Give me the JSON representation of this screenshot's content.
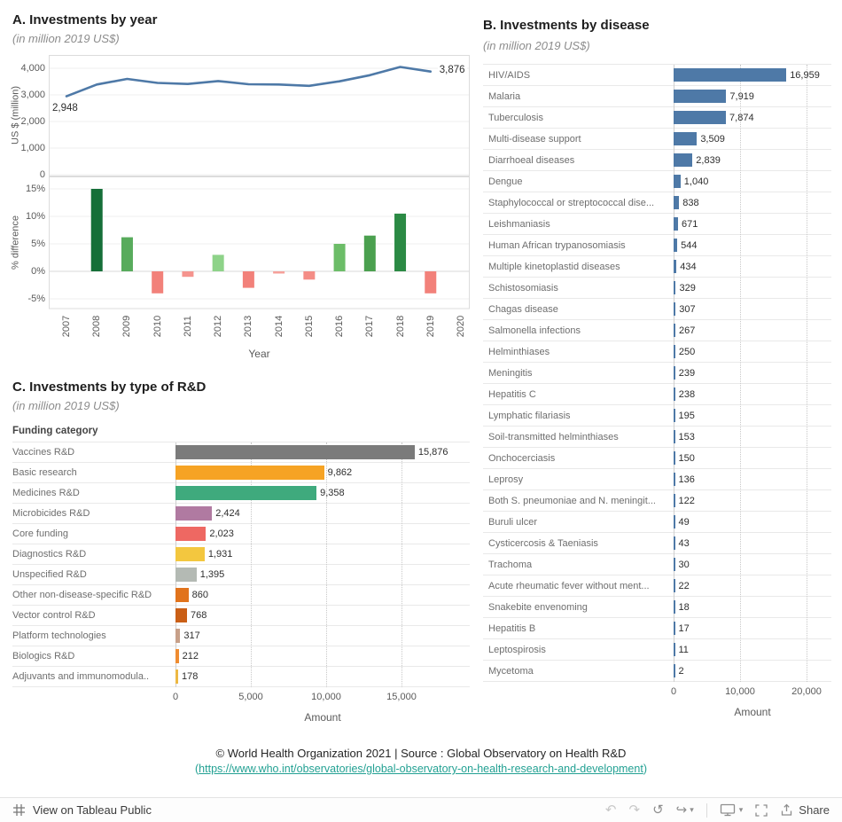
{
  "panel_a": {
    "title": "A. Investments by year",
    "subtitle": "(in million 2019 US$)",
    "y_axis_label_line": "US $ (million)",
    "y_axis_label_bars": "% difference",
    "x_axis_label": "Year"
  },
  "panel_b": {
    "title": "B. Investments by disease",
    "subtitle": "(in million 2019 US$)",
    "x_axis_label": "Amount"
  },
  "panel_c": {
    "title": "C. Investments by type of R&D",
    "subtitle": "(in million 2019 US$)",
    "column_header": "Funding category",
    "x_axis_label": "Amount"
  },
  "footer": {
    "line1": "© World Health Organization 2021 | Source : Global Observatory on Health R&D",
    "link_prefix": "(",
    "link_text": "https://www.who.int/observatories/global-observatory-on-health-research-and-development",
    "link_suffix": ")"
  },
  "toolbar": {
    "view_label": "View on Tableau Public",
    "share_label": "Share",
    "icons": {
      "undo": "↶",
      "redo": "↷",
      "replay": "↺",
      "resume": "↪",
      "caret": "▾"
    }
  },
  "colors": {
    "line": "#4e79a7",
    "disease_bar": "#4e79a7",
    "link": "#23a193",
    "grid": "#efefef",
    "border": "#dcdcdc"
  },
  "chart_data": [
    {
      "type": "line",
      "title": "A. Investments by year",
      "subtitle": "(in million 2019 US$)",
      "xlabel": "Year",
      "ylabel": "US $ (million)",
      "x_domain": [
        2007,
        2020
      ],
      "x": [
        2007,
        2008,
        2009,
        2010,
        2011,
        2012,
        2013,
        2014,
        2015,
        2016,
        2017,
        2018,
        2019
      ],
      "values": [
        2948,
        3390,
        3600,
        3450,
        3410,
        3520,
        3400,
        3390,
        3340,
        3510,
        3740,
        4050,
        3876
      ],
      "ylim": [
        0,
        4000
      ],
      "yticks": [
        "4,000",
        "3,000",
        "2,000",
        "1,000",
        "0"
      ],
      "color": "#4e79a7",
      "annotations": [
        {
          "x": 2007,
          "label": "2,948"
        },
        {
          "x": 2019,
          "label": "3,876"
        }
      ]
    },
    {
      "type": "bar",
      "ylabel": "% difference",
      "xlabel": "Year",
      "categories": [
        2007,
        2008,
        2009,
        2010,
        2011,
        2012,
        2013,
        2014,
        2015,
        2016,
        2017,
        2018,
        2019,
        2020
      ],
      "values": [
        null,
        15,
        6.2,
        -4,
        -1,
        3,
        -3,
        -0.4,
        -1.5,
        5,
        6.5,
        10.5,
        -4,
        null
      ],
      "colors": [
        null,
        "#156f38",
        "#58ab5c",
        "#f2817a",
        "#f5948e",
        "#8ed389",
        "#f2817a",
        "#f6a09a",
        "#f48d86",
        "#6cbd68",
        "#4ba04f",
        "#2b8a44",
        "#f2817a",
        null
      ],
      "ylim": [
        -5,
        15
      ],
      "yticks": [
        "15%",
        "10%",
        "5%",
        "0%",
        "-5%"
      ],
      "grid": true
    },
    {
      "type": "bar",
      "orientation": "horizontal",
      "title": "B. Investments by disease",
      "xlabel": "Amount",
      "xlim": [
        0,
        20000
      ],
      "xticks": [
        "0",
        "10,000",
        "20,000"
      ],
      "bar_color": "#4e79a7",
      "categories": [
        "HIV/AIDS",
        "Malaria",
        "Tuberculosis",
        "Multi-disease support",
        "Diarrhoeal diseases",
        "Dengue",
        "Staphylococcal or streptococcal dise...",
        "Leishmaniasis",
        "Human African trypanosomiasis",
        "Multiple kinetoplastid diseases",
        "Schistosomiasis",
        "Chagas disease",
        "Salmonella infections",
        "Helminthiases",
        "Meningitis",
        "Hepatitis C",
        "Lymphatic filariasis",
        "Soil-transmitted helminthiases",
        "Onchocerciasis",
        "Leprosy",
        "Both S. pneumoniae and N. meningit...",
        "Buruli ulcer",
        "Cysticercosis & Taeniasis",
        "Trachoma",
        "Acute rheumatic fever without ment...",
        "Snakebite envenoming",
        "Hepatitis B",
        "Leptospirosis",
        "Mycetoma"
      ],
      "values": [
        16959,
        7919,
        7874,
        3509,
        2839,
        1040,
        838,
        671,
        544,
        434,
        329,
        307,
        267,
        250,
        239,
        238,
        195,
        153,
        150,
        136,
        122,
        49,
        43,
        30,
        22,
        18,
        17,
        11,
        2
      ]
    },
    {
      "type": "bar",
      "orientation": "horizontal",
      "title": "C. Investments by type of R&D",
      "column_header": "Funding category",
      "xlabel": "Amount",
      "xlim": [
        0,
        19500
      ],
      "xticks": [
        "0",
        "5,000",
        "10,000",
        "15,000"
      ],
      "categories": [
        "Vaccines R&D",
        "Basic research",
        "Medicines R&D",
        "Microbicides R&D",
        "Core funding",
        "Diagnostics R&D",
        "Unspecified R&D",
        "Other non-disease-specific R&D",
        "Vector control R&D",
        "Platform technologies",
        "Biologics R&D",
        "Adjuvants and immunomodula.."
      ],
      "values": [
        15876,
        9862,
        9358,
        2424,
        2023,
        1931,
        1395,
        860,
        768,
        317,
        212,
        178
      ],
      "colors": [
        "#7b7b7b",
        "#f6a324",
        "#3faa7d",
        "#b07aa1",
        "#ee6862",
        "#f3c73f",
        "#b4bab4",
        "#e1731c",
        "#ca5f16",
        "#c7a089",
        "#ef8c30",
        "#edb843"
      ]
    }
  ]
}
